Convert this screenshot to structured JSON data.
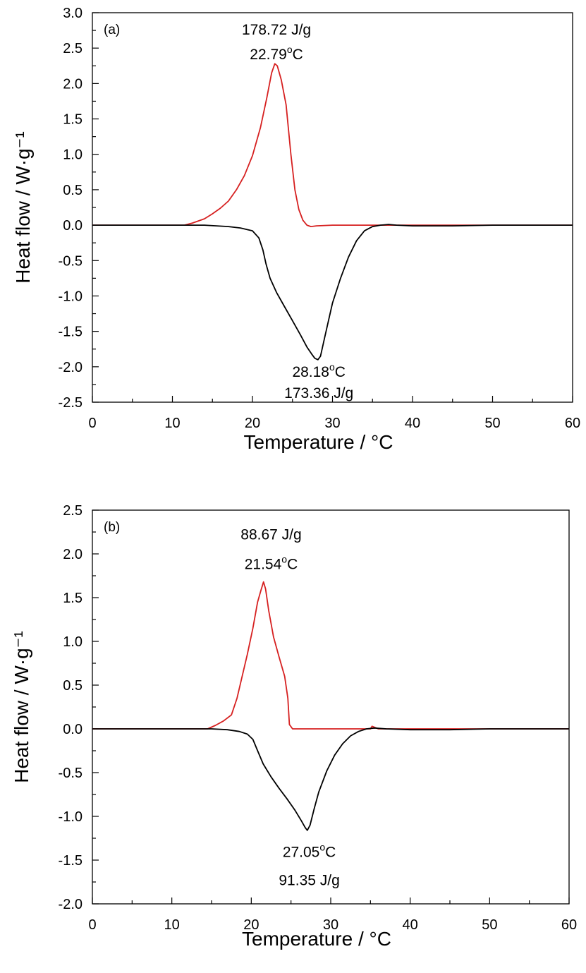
{
  "chart_data": [
    {
      "type": "line",
      "panel_label": "(a)",
      "xlabel": "Temperature / °C",
      "ylabel": "Heat flow / W·g⁻¹",
      "xlim": [
        0,
        60
      ],
      "ylim": [
        -2.5,
        3.0
      ],
      "xticks": [
        0,
        10,
        20,
        30,
        40,
        50,
        60
      ],
      "xtick_labels": [
        "0",
        "10",
        "20",
        "30",
        "40",
        "50",
        "60"
      ],
      "yticks": [
        -2.5,
        -2.0,
        -1.5,
        -1.0,
        -0.5,
        0.0,
        0.5,
        1.0,
        1.5,
        2.0,
        2.5,
        3.0
      ],
      "ytick_labels": [
        "-2.5",
        "-2.0",
        "-1.5",
        "-1.0",
        "-0.5",
        "0.0",
        "0.5",
        "1.0",
        "1.5",
        "2.0",
        "2.5",
        "3.0"
      ],
      "grid": false,
      "series": [
        {
          "color": "#d62020",
          "x": [
            0,
            11.5,
            12.5,
            14,
            15,
            16,
            17,
            18,
            19,
            20,
            21,
            21.8,
            22.4,
            22.79,
            23.1,
            23.6,
            24.2,
            24.8,
            25.3,
            25.8,
            26.3,
            26.8,
            27.3,
            28,
            30,
            40,
            50,
            60
          ],
          "y": [
            0.0,
            0.0,
            0.03,
            0.09,
            0.16,
            0.24,
            0.34,
            0.5,
            0.7,
            0.98,
            1.38,
            1.8,
            2.15,
            2.28,
            2.25,
            2.05,
            1.7,
            1.0,
            0.5,
            0.22,
            0.07,
            0.0,
            -0.02,
            -0.01,
            0.0,
            0.0,
            0.0,
            0.0
          ]
        },
        {
          "color": "#000000",
          "x": [
            0,
            14,
            17,
            18.5,
            20,
            20.8,
            21.3,
            21.7,
            22.2,
            23,
            24,
            25,
            26,
            26.8,
            27.4,
            27.8,
            28.18,
            28.5,
            29,
            29.5,
            30,
            31,
            32,
            33,
            34,
            35,
            36,
            37,
            38,
            40,
            45,
            50,
            60
          ],
          "y": [
            0.0,
            0.0,
            -0.02,
            -0.04,
            -0.08,
            -0.18,
            -0.35,
            -0.55,
            -0.75,
            -0.95,
            -1.15,
            -1.35,
            -1.55,
            -1.72,
            -1.82,
            -1.88,
            -1.9,
            -1.85,
            -1.6,
            -1.35,
            -1.1,
            -0.75,
            -0.45,
            -0.22,
            -0.08,
            -0.02,
            0.0,
            0.01,
            0.0,
            -0.01,
            -0.01,
            0.0,
            0.0
          ]
        }
      ],
      "annotations": [
        {
          "text": "178.72 J/g",
          "x": 23.0,
          "y": 2.77
        },
        {
          "text": "22.79",
          "sup": "o",
          "unit": "C",
          "x": 23.0,
          "y": 2.42
        },
        {
          "text": "28.18",
          "sup": "o",
          "unit": "C",
          "x": 28.3,
          "y": -2.06
        },
        {
          "text": "173.36 J/g",
          "x": 28.3,
          "y": -2.36
        }
      ]
    },
    {
      "type": "line",
      "panel_label": "(b)",
      "xlabel": "Temperature / °C",
      "ylabel": "Heat flow / W·g⁻¹",
      "xlim": [
        0,
        60
      ],
      "ylim": [
        -2.0,
        2.5
      ],
      "xticks": [
        0,
        10,
        20,
        30,
        40,
        50,
        60
      ],
      "xtick_labels": [
        "0",
        "10",
        "20",
        "30",
        "40",
        "50",
        "60"
      ],
      "yticks": [
        -2.0,
        -1.5,
        -1.0,
        -0.5,
        0.0,
        0.5,
        1.0,
        1.5,
        2.0,
        2.5
      ],
      "ytick_labels": [
        "-2.0",
        "-1.5",
        "-1.0",
        "-0.5",
        "0.0",
        "0.5",
        "1.0",
        "1.5",
        "2.0",
        "2.5"
      ],
      "grid": false,
      "series": [
        {
          "color": "#d62020",
          "x": [
            0,
            14.5,
            15.5,
            16.5,
            17.5,
            18.2,
            18.8,
            19.5,
            20.2,
            20.8,
            21.2,
            21.54,
            21.8,
            22.2,
            22.8,
            23.5,
            24.2,
            24.6,
            24.8,
            25.2,
            26,
            30,
            35,
            35.2,
            36,
            40,
            50,
            60
          ],
          "y": [
            0.0,
            0.0,
            0.04,
            0.09,
            0.16,
            0.35,
            0.58,
            0.85,
            1.15,
            1.45,
            1.58,
            1.68,
            1.6,
            1.35,
            1.05,
            0.82,
            0.6,
            0.35,
            0.05,
            0.0,
            0.0,
            0.0,
            0.0,
            0.03,
            0.0,
            0.0,
            0.0,
            0.0
          ]
        },
        {
          "color": "#000000",
          "x": [
            0,
            15,
            17,
            18.5,
            19.5,
            20.2,
            20.8,
            21.5,
            22.5,
            23.5,
            24.5,
            25.5,
            26.3,
            26.8,
            27.05,
            27.4,
            27.9,
            28.5,
            29.5,
            30.5,
            31.5,
            32.5,
            33.5,
            34.5,
            35.5,
            37,
            40,
            45,
            50,
            60
          ],
          "y": [
            0.0,
            0.0,
            -0.01,
            -0.03,
            -0.06,
            -0.12,
            -0.25,
            -0.4,
            -0.55,
            -0.68,
            -0.8,
            -0.93,
            -1.05,
            -1.13,
            -1.16,
            -1.1,
            -0.92,
            -0.72,
            -0.48,
            -0.3,
            -0.17,
            -0.08,
            -0.03,
            0.0,
            0.01,
            0.0,
            -0.01,
            -0.01,
            0.0,
            0.0
          ]
        }
      ],
      "annotations": [
        {
          "text": "88.67 J/g",
          "x": 22.5,
          "y": 2.23
        },
        {
          "text": "21.54",
          "sup": "o",
          "unit": "C",
          "x": 22.5,
          "y": 1.89
        },
        {
          "text": "27.05",
          "sup": "o",
          "unit": "C",
          "x": 27.3,
          "y": -1.4
        },
        {
          "text": "91.35 J/g",
          "x": 27.3,
          "y": -1.72
        }
      ]
    }
  ]
}
